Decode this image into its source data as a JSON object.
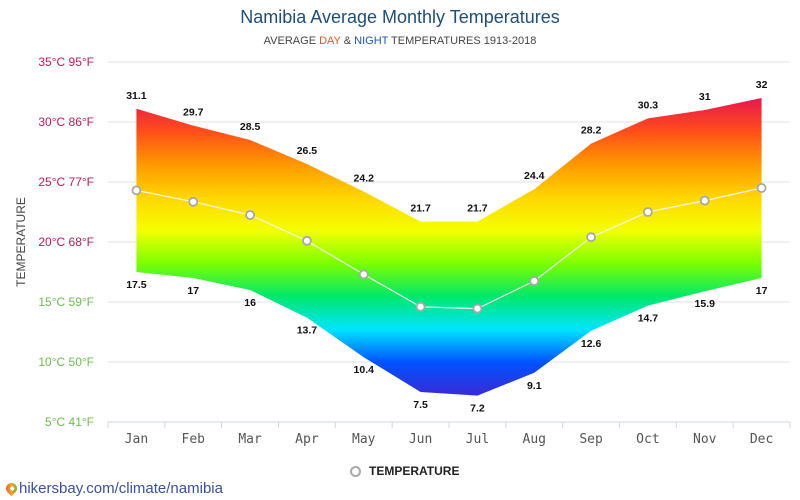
{
  "header": {
    "title": "Namibia Average Monthly Temperatures",
    "subtitle_prefix": "AVERAGE ",
    "subtitle_day": "DAY",
    "subtitle_amp": " & ",
    "subtitle_night": "NIGHT",
    "subtitle_suffix": " TEMPERATURES 1913-2018"
  },
  "legend": {
    "label": "TEMPERATURE"
  },
  "source": {
    "text": "hikersbay.com/climate/namibia",
    "icon": "map-pin-icon"
  },
  "colors": {
    "title": "#1f4e79",
    "day": "#e8541c",
    "night": "#1a56b8",
    "warm_tick": "#c2185b",
    "cool_tick": "#6abf4b",
    "gradient_stops": [
      "#e8174f",
      "#ff4d1a",
      "#ff9800",
      "#ffd600",
      "#f4ff00",
      "#7dff00",
      "#00e86a",
      "#00e5ff",
      "#0052ff",
      "#3a2bd6"
    ]
  },
  "chart_data": {
    "type": "area",
    "title": "Namibia Average Monthly Temperatures",
    "subtitle": "AVERAGE DAY & NIGHT TEMPERATURES 1913-2018",
    "xlabel": "",
    "ylabel": "TEMPERATURE",
    "categories": [
      "Jan",
      "Feb",
      "Mar",
      "Apr",
      "May",
      "Jun",
      "Jul",
      "Aug",
      "Sep",
      "Oct",
      "Nov",
      "Dec"
    ],
    "series": [
      {
        "name": "Day",
        "values": [
          31.1,
          29.7,
          28.5,
          26.5,
          24.2,
          21.7,
          21.7,
          24.4,
          28.2,
          30.3,
          31,
          32
        ]
      },
      {
        "name": "Night",
        "values": [
          17.5,
          17,
          16,
          13.7,
          10.4,
          7.5,
          7.2,
          9.1,
          12.6,
          14.7,
          15.9,
          17
        ]
      },
      {
        "name": "TEMPERATURE",
        "values": [
          24.3,
          23.35,
          22.25,
          20.1,
          17.3,
          14.6,
          14.45,
          16.75,
          20.4,
          22.5,
          23.45,
          24.5
        ]
      }
    ],
    "yticks": [
      {
        "c": 35,
        "label": "35°C 95°F"
      },
      {
        "c": 30,
        "label": "30°C 86°F"
      },
      {
        "c": 25,
        "label": "25°C 77°F"
      },
      {
        "c": 20,
        "label": "20°C 68°F"
      },
      {
        "c": 15,
        "label": "15°C 59°F"
      },
      {
        "c": 10,
        "label": "10°C 50°F"
      },
      {
        "c": 5,
        "label": "5°C 41°F"
      }
    ],
    "ylim": [
      5,
      35
    ],
    "grid": true,
    "legend_position": "bottom-center"
  }
}
